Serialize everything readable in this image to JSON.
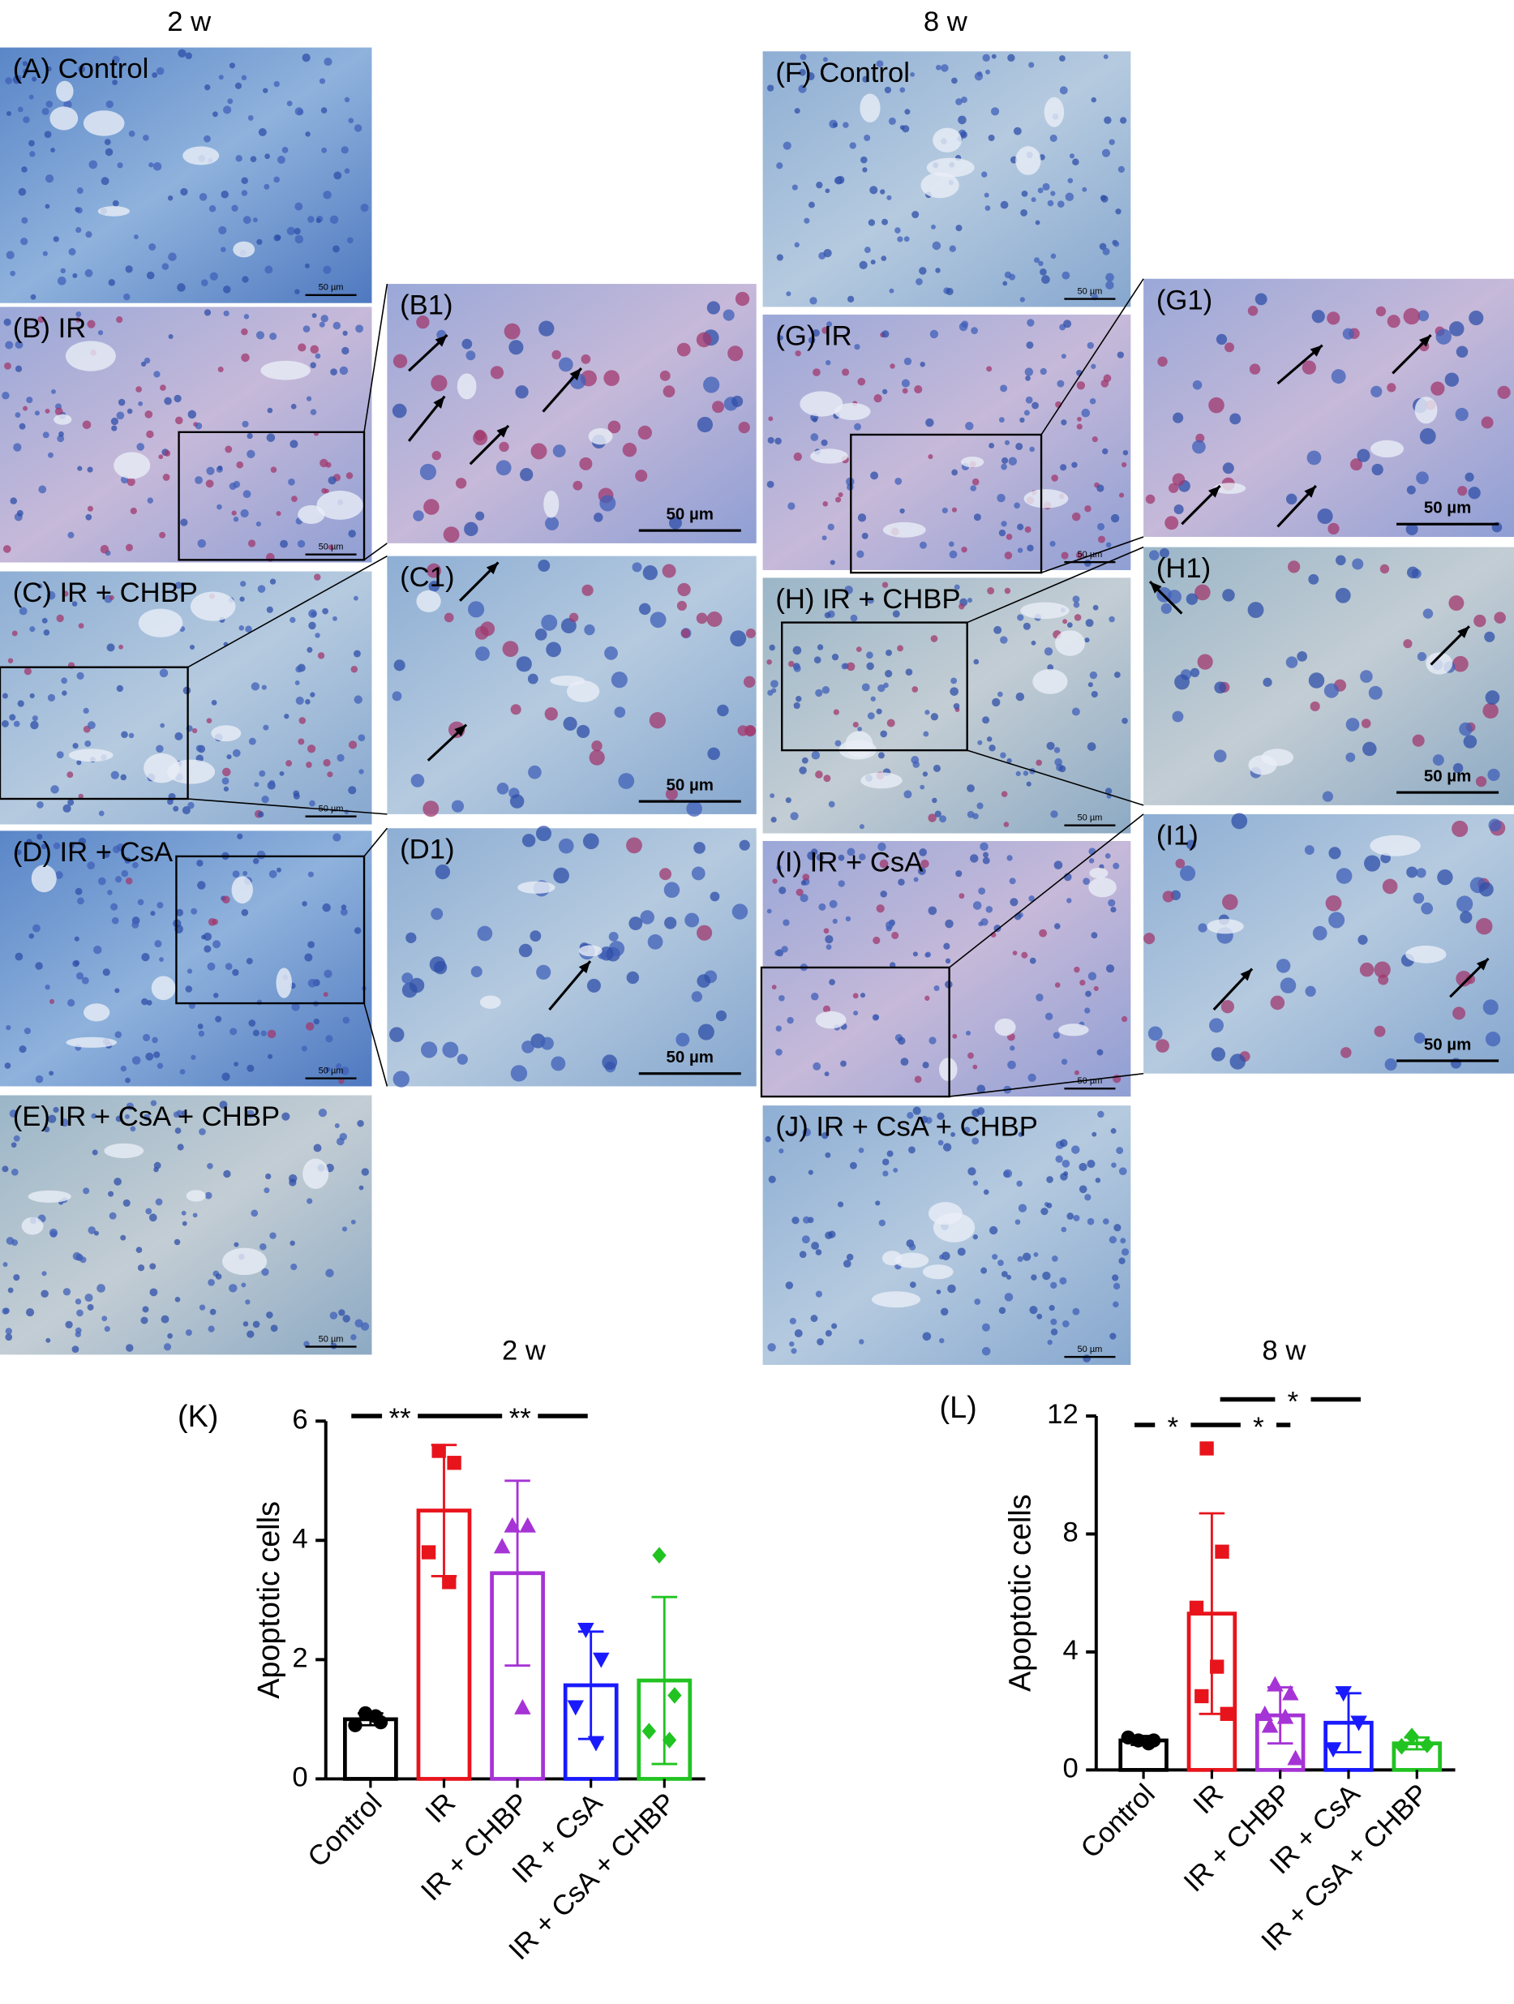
{
  "headers": [
    "2 w",
    "8 w"
  ],
  "panels": [
    {
      "label": "(A) Control",
      "scale": "50 µm"
    },
    {
      "label": "(B) IR",
      "scale": "50 µm"
    },
    {
      "label": "(C) IR + CHBP",
      "scale": "50 µm"
    },
    {
      "label": "(D) IR + CsA",
      "scale": "50 µm"
    },
    {
      "label": "(E) IR + CsA + CHBP",
      "scale": "50 µm"
    },
    {
      "label": "(B1)",
      "scale": "50 µm"
    },
    {
      "label": "(C1)",
      "scale": "50 µm"
    },
    {
      "label": "(D1)",
      "scale": "50 µm"
    },
    {
      "label": "(F) Control",
      "scale": "50 µm"
    },
    {
      "label": "(G) IR",
      "scale": "50 µm"
    },
    {
      "label": "(H) IR + CHBP",
      "scale": "50 µm"
    },
    {
      "label": "(I) IR + CsA",
      "scale": "50 µm"
    },
    {
      "label": "(J) IR + CsA + CHBP",
      "scale": "50 µm"
    },
    {
      "label": "(G1)",
      "scale": "50 µm"
    },
    {
      "label": "(H1)",
      "scale": "50 µm"
    },
    {
      "label": "(I1)",
      "scale": "50 µm"
    }
  ],
  "chart_data": [
    {
      "type": "bar",
      "title": "2 w",
      "panel_label": "(K)",
      "ylabel": "Apoptotic cells",
      "categories": [
        "Control",
        "IR",
        "IR + CHBP",
        "IR + CsA",
        "IR + CsA + CHBP"
      ],
      "values": [
        1.0,
        4.5,
        3.45,
        1.57,
        1.65
      ],
      "errors": [
        0.1,
        1.1,
        1.55,
        0.9,
        1.4
      ],
      "points": [
        [
          1.1,
          0.95,
          0.9,
          1.05
        ],
        [
          5.5,
          5.3,
          3.8,
          3.3
        ],
        [
          4.25,
          4.25,
          3.9,
          1.2
        ],
        [
          2.5,
          2.0,
          1.2,
          0.6
        ],
        [
          3.75,
          1.4,
          0.8,
          0.65
        ]
      ],
      "colors": [
        "#000000",
        "#e8141c",
        "#a633d6",
        "#1a1aff",
        "#21c321"
      ],
      "markers": [
        "circle",
        "square",
        "triangle-up",
        "triangle-down",
        "diamond"
      ],
      "ylim": [
        0,
        6
      ],
      "yticks": [
        0,
        2,
        4,
        6
      ],
      "annotations": [
        "**",
        "**"
      ]
    },
    {
      "type": "bar",
      "title": "8 w",
      "panel_label": "(L)",
      "ylabel": "Apoptotic cells",
      "categories": [
        "Control",
        "IR",
        "IR + CHBP",
        "IR + CsA",
        "IR + CsA + CHBP"
      ],
      "values": [
        1.0,
        5.3,
        1.85,
        1.6,
        0.9
      ],
      "errors": [
        0.15,
        3.4,
        0.95,
        1.0,
        0.2
      ],
      "points": [
        [
          1.0,
          1.0,
          1.1,
          0.9
        ],
        [
          10.9,
          7.4,
          5.5,
          3.5,
          2.5,
          1.9
        ],
        [
          2.9,
          2.6,
          1.9,
          1.8,
          1.5,
          0.4
        ],
        [
          2.6,
          1.6,
          0.7
        ],
        [
          1.15,
          0.85,
          0.8
        ]
      ],
      "colors": [
        "#000000",
        "#e8141c",
        "#a633d6",
        "#1a1aff",
        "#21c321"
      ],
      "markers": [
        "circle",
        "square",
        "triangle-up",
        "triangle-down",
        "diamond"
      ],
      "ylim": [
        0,
        12
      ],
      "yticks": [
        0,
        4,
        8,
        12
      ],
      "annotations": [
        "*",
        "*",
        "*"
      ]
    }
  ]
}
